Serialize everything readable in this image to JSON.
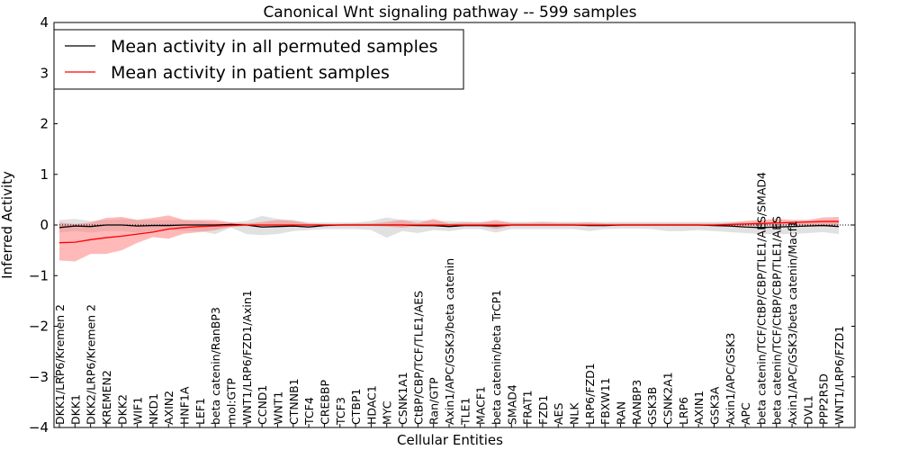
{
  "chart_data": {
    "type": "line",
    "title": "Canonical Wnt signaling pathway -- 599 samples",
    "xlabel": "Cellular Entities",
    "ylabel": "Inferred Activity",
    "ylim": [
      -4,
      4
    ],
    "yticks": [
      -4,
      -3,
      -2,
      -1,
      0,
      1,
      2,
      3,
      4
    ],
    "ytick_labels": [
      "−4",
      "−3",
      "−2",
      "−1",
      "0",
      "1",
      "2",
      "3",
      "4"
    ],
    "legend_placement": "top-left",
    "categories": [
      "DKK1/LRP6/Kremen 2",
      "DKK1",
      "DKK2/LRP6/Kremen 2",
      "KREMEN2",
      "DKK2",
      "WIF1",
      "NKD1",
      "AXIN2",
      "HNF1A",
      "LEF1",
      "beta catenin/RanBP3",
      "mol:GTP",
      "WNT1/LRP6/FZD1/Axin1",
      "CCND1",
      "WNT1",
      "CTNNB1",
      "TCF4",
      "CREBBP",
      "TCF3",
      "CTBP1",
      "HDAC1",
      "MYC",
      "CSNK1A1",
      "CtBP/CBP/TCF/TLE1/AES",
      "Ran/GTP",
      "Axin1/APC/GSK3/beta catenin",
      "TLE1",
      "MACF1",
      "beta catenin/beta TrCP1",
      "SMAD4",
      "FRAT1",
      "FZD1",
      "AES",
      "NLK",
      "LRP6/FZD1",
      "FBXW11",
      "RAN",
      "RANBP3",
      "GSK3B",
      "CSNK2A1",
      "LRP6",
      "AXIN1",
      "GSK3A",
      "Axin1/APC/GSK3",
      "APC",
      "beta catenin/TCF/CtBP/CBP/TLE1/AES/SMAD4",
      "beta catenin/TCF/CtBP/CBP/TLE1/AES",
      "Axin1/APC/GSK3/beta catenin/Macf1",
      "DVL1",
      "PPP2R5D",
      "WNT1/LRP6/FZD1"
    ],
    "series": [
      {
        "name": "Mean activity in all permuted samples",
        "color": "#000000",
        "band_color": "#c8c8c8",
        "values": [
          -0.05,
          -0.02,
          -0.03,
          0,
          0,
          -0.02,
          -0.01,
          -0.01,
          0,
          0,
          0,
          0.01,
          0,
          -0.04,
          -0.03,
          -0.02,
          -0.04,
          -0.01,
          0,
          0,
          0,
          0,
          0,
          -0.01,
          -0.01,
          -0.03,
          -0.01,
          -0.01,
          -0.02,
          0,
          0,
          0,
          0,
          0,
          -0.01,
          -0.01,
          0,
          0,
          0,
          0,
          0,
          0,
          -0.01,
          -0.02,
          -0.04,
          -0.05,
          -0.04,
          -0.03,
          -0.02,
          -0.01,
          -0.03
        ],
        "lower": [
          -0.15,
          -0.12,
          -0.15,
          -0.12,
          -0.12,
          -0.15,
          -0.12,
          -0.1,
          -0.12,
          -0.12,
          -0.18,
          -0.05,
          -0.18,
          -0.2,
          -0.18,
          -0.12,
          -0.1,
          -0.08,
          -0.08,
          -0.08,
          -0.1,
          -0.25,
          -0.12,
          -0.16,
          -0.1,
          -0.12,
          -0.08,
          -0.08,
          -0.15,
          -0.08,
          -0.08,
          -0.08,
          -0.08,
          -0.08,
          -0.12,
          -0.08,
          -0.07,
          -0.07,
          -0.08,
          -0.12,
          -0.12,
          -0.1,
          -0.12,
          -0.14,
          -0.16,
          -0.18,
          -0.18,
          -0.18,
          -0.16,
          -0.14,
          -0.18
        ],
        "upper": [
          0.1,
          0.12,
          0.08,
          0.1,
          0.12,
          0.1,
          0.1,
          0.1,
          0.1,
          0.08,
          0.05,
          0.05,
          0.08,
          0.18,
          0.12,
          0.1,
          0.05,
          0.05,
          0.05,
          0.05,
          0.08,
          0.15,
          0.1,
          0.1,
          0.08,
          0.08,
          0.07,
          0.06,
          0.06,
          0.06,
          0.06,
          0.07,
          0.06,
          0.06,
          0.06,
          0.06,
          0.06,
          0.06,
          0.06,
          0.06,
          0.06,
          0.06,
          0.06,
          0.07,
          0.06,
          0.06,
          0.06,
          0.06,
          0.06,
          0.06,
          0.06
        ]
      },
      {
        "name": "Mean activity in patient samples",
        "color": "#ff0000",
        "band_color": "#ff8080",
        "values": [
          -0.35,
          -0.34,
          -0.29,
          -0.25,
          -0.22,
          -0.18,
          -0.14,
          -0.08,
          -0.05,
          -0.03,
          -0.02,
          -0.01,
          0,
          0,
          0,
          0,
          0,
          0,
          0,
          0,
          0,
          0,
          0,
          0,
          0,
          0,
          0,
          0,
          0,
          0,
          0,
          0,
          0,
          0,
          0,
          0,
          0,
          0,
          0,
          0,
          0,
          0,
          0,
          0.01,
          0.02,
          0.03,
          0.04,
          0.05,
          0.06,
          0.07,
          0.07
        ],
        "lower": [
          -0.7,
          -0.72,
          -0.57,
          -0.57,
          -0.5,
          -0.35,
          -0.24,
          -0.27,
          -0.17,
          -0.14,
          -0.1,
          -0.04,
          -0.02,
          -0.05,
          -0.04,
          -0.04,
          -0.03,
          -0.02,
          -0.02,
          -0.02,
          -0.02,
          -0.03,
          -0.05,
          -0.02,
          -0.03,
          -0.02,
          -0.02,
          -0.02,
          -0.08,
          -0.02,
          -0.02,
          -0.02,
          -0.02,
          -0.02,
          -0.02,
          -0.02,
          -0.02,
          -0.02,
          -0.02,
          -0.02,
          -0.02,
          -0.02,
          -0.02,
          -0.02,
          -0.02,
          -0.01,
          -0.01,
          0,
          0,
          -0.01,
          0
        ],
        "upper": [
          0.05,
          0.02,
          0.05,
          0.14,
          0.16,
          0.1,
          0.14,
          0.19,
          0.1,
          0.1,
          0.1,
          0.05,
          0.03,
          0.06,
          0.1,
          0.08,
          0.03,
          0.02,
          0.02,
          0.03,
          0.03,
          0.06,
          0.1,
          0.04,
          0.12,
          0.03,
          0.05,
          0.05,
          0.1,
          0.04,
          0.04,
          0.05,
          0.04,
          0.04,
          0.05,
          0.03,
          0.03,
          0.03,
          0.03,
          0.03,
          0.03,
          0.03,
          0.03,
          0.04,
          0.08,
          0.1,
          0.12,
          0.1,
          0.1,
          0.15,
          0.16
        ]
      }
    ]
  }
}
